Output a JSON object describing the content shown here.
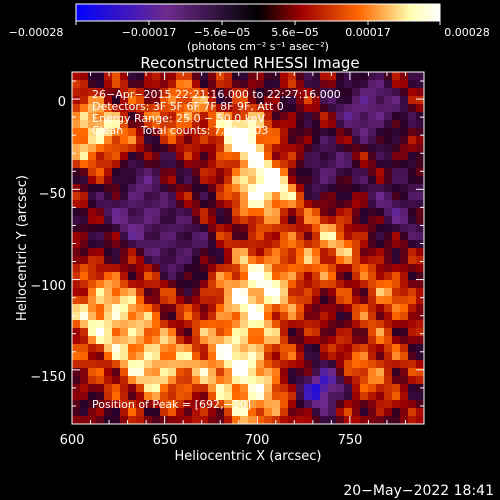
{
  "chart_data": {
    "type": "heatmap",
    "title": "Reconstructed RHESSI Image",
    "xlabel": "Heliocentric X (arcsec)",
    "ylabel": "Heliocentric Y (arcsec)",
    "xlim": [
      600,
      790
    ],
    "ylim": [
      -180,
      15
    ],
    "x_ticks": [
      "600",
      "650",
      "700",
      "750"
    ],
    "y_ticks": [
      "0",
      "−50",
      "−100",
      "−150"
    ],
    "colorbar": {
      "tick_labels": [
        "−0.00028",
        "−0.00017",
        "−5.6e−05",
        "5.6e−05",
        "0.00017",
        "0.00028"
      ],
      "range": [
        -0.00028,
        0.00028
      ],
      "unit_label": "(photons cm⁻² s⁻¹ asec⁻²)",
      "colors": [
        "#0000ff",
        "#6e2a8c",
        "#000000",
        "#a00000",
        "#ff6a00",
        "#ffffb0",
        "#ffffff"
      ]
    },
    "annotations": {
      "time_range": "26−Apr−2015 22:21:16.000 to 22:27:16.000",
      "detectors": "Detectors: 3F 5F 6F 7F 8F 9F, Att 0",
      "energy": "Energy Range: 25.0 − 50.0 keV",
      "clean": "Clean     Total counts: 7.06e+03",
      "peak": "Position of Peak = [692,−20]"
    },
    "peak": {
      "x": 692,
      "y": -20
    }
  },
  "footer": {
    "timestamp": "20−May−2022 18:41"
  }
}
